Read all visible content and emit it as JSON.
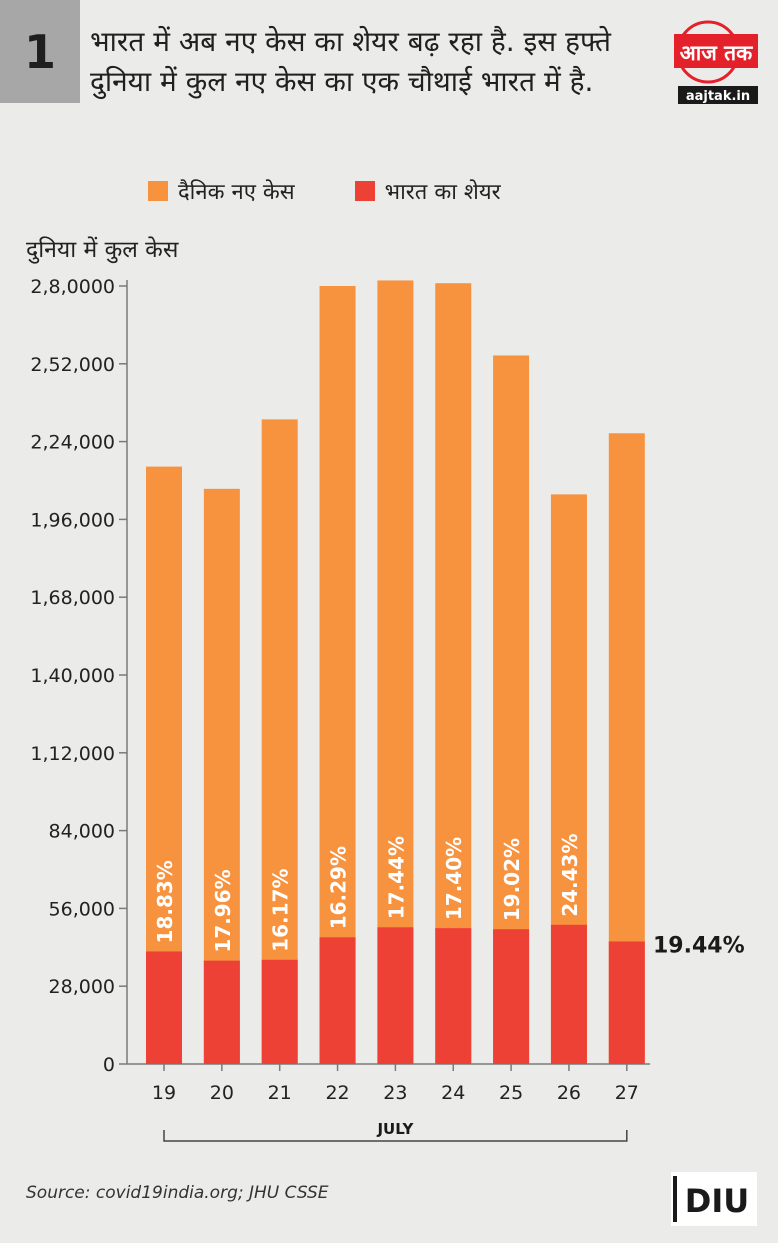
{
  "header": {
    "number": "1",
    "headline": "भारत में अब नए केस का शेयर बढ़ रहा है. इस हफ्ते दुनिया में कुल नए केस का एक चौथाई भारत में है."
  },
  "logo": {
    "name": "आज तक",
    "url": "aajtak.in"
  },
  "legend": {
    "daily_cases": "दैनिक नए केस",
    "india_share": "भारत का शेयर"
  },
  "colors": {
    "daily_cases": "#f7923e",
    "india_share": "#ee4135",
    "background": "#ebebea",
    "number_box": "#a7a7a7",
    "logo_red": "#e4202a"
  },
  "chart_data": {
    "type": "bar",
    "ylabel": "दुनिया में कुल केस",
    "xlabel": "JULY",
    "categories": [
      "19",
      "20",
      "21",
      "22",
      "23",
      "24",
      "25",
      "26",
      "27"
    ],
    "series": [
      {
        "name": "दैनिक नए केस",
        "values": [
          215000,
          207000,
          232000,
          280000,
          282000,
          281000,
          255000,
          205000,
          227000
        ]
      },
      {
        "name": "भारत का शेयर",
        "values": [
          40500,
          37200,
          37500,
          45600,
          49200,
          48900,
          48500,
          50100,
          44100
        ]
      }
    ],
    "share_labels": [
      "18.83%",
      "17.96%",
      "16.17%",
      "16.29%",
      "17.44%",
      "17.40%",
      "19.02%",
      "24.43%",
      "19.44%"
    ],
    "yticks": [
      0,
      28000,
      56000,
      84000,
      112000,
      140000,
      168000,
      196000,
      224000,
      252000,
      280000
    ],
    "ytick_labels": [
      "0",
      "28,000",
      "56,000",
      "84,000",
      "1,12,000",
      "1,40,000",
      "1,68,000",
      "1,96,000",
      "2,24,000",
      "2,52,000",
      "2,8,0000"
    ],
    "ylim": [
      0,
      280000
    ]
  },
  "source": "Source: covid19india.org; JHU CSSE",
  "footer_logo": "DIU"
}
